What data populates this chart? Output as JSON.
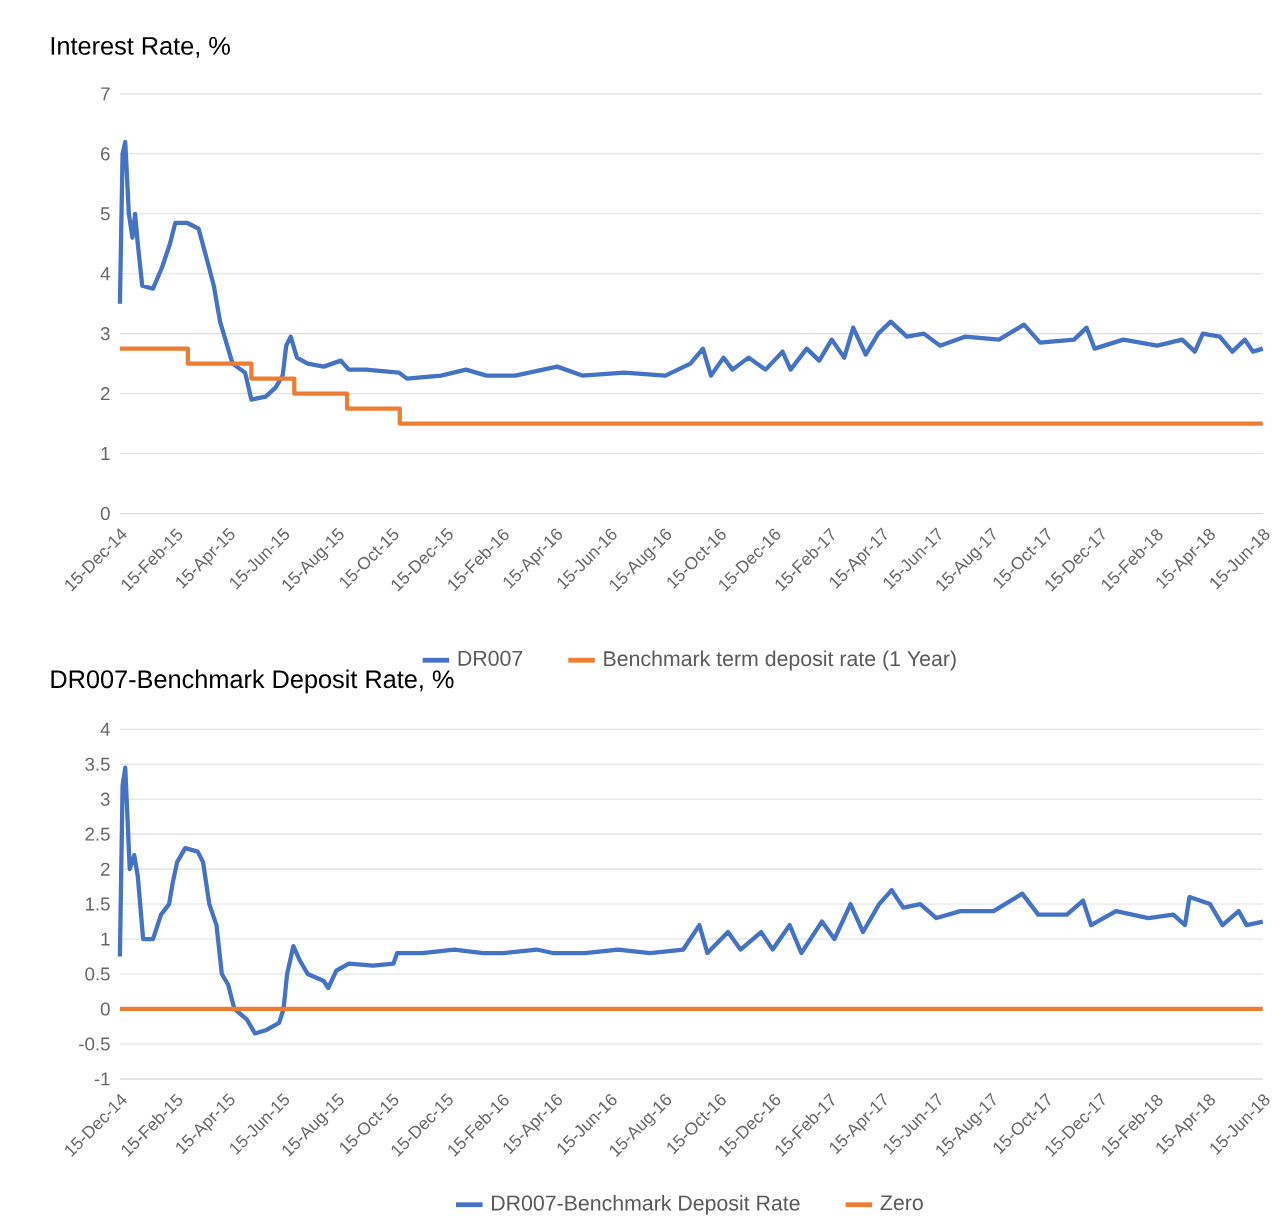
{
  "chart_data": [
    {
      "type": "line",
      "title": "Interest Rate, %",
      "grid": "y",
      "legend": "bottom",
      "xlim": [
        "2014-12-15",
        "2018-06-15"
      ],
      "xticks": [
        {
          "value": "2014-12-15",
          "label": "15-Dec-14"
        },
        {
          "value": "2015-02-15",
          "label": "15-Feb-15"
        },
        {
          "value": "2015-04-15",
          "label": "15-Apr-15"
        },
        {
          "value": "2015-06-15",
          "label": "15-Jun-15"
        },
        {
          "value": "2015-08-15",
          "label": "15-Aug-15"
        },
        {
          "value": "2015-10-15",
          "label": "15-Oct-15"
        },
        {
          "value": "2015-12-15",
          "label": "15-Dec-15"
        },
        {
          "value": "2016-02-15",
          "label": "15-Feb-16"
        },
        {
          "value": "2016-04-15",
          "label": "15-Apr-16"
        },
        {
          "value": "2016-06-15",
          "label": "15-Jun-16"
        },
        {
          "value": "2016-08-15",
          "label": "15-Aug-16"
        },
        {
          "value": "2016-10-15",
          "label": "15-Oct-16"
        },
        {
          "value": "2016-12-15",
          "label": "15-Dec-16"
        },
        {
          "value": "2017-02-15",
          "label": "15-Feb-17"
        },
        {
          "value": "2017-04-15",
          "label": "15-Apr-17"
        },
        {
          "value": "2017-06-15",
          "label": "15-Jun-17"
        },
        {
          "value": "2017-08-15",
          "label": "15-Aug-17"
        },
        {
          "value": "2017-10-15",
          "label": "15-Oct-17"
        },
        {
          "value": "2017-12-15",
          "label": "15-Dec-17"
        },
        {
          "value": "2018-02-15",
          "label": "15-Feb-18"
        },
        {
          "value": "2018-04-15",
          "label": "15-Apr-18"
        },
        {
          "value": "2018-06-15",
          "label": "15-Jun-18"
        }
      ],
      "ylim": [
        0,
        7
      ],
      "yticks": [
        0,
        1,
        2,
        3,
        4,
        5,
        6,
        7
      ],
      "series": [
        {
          "name": "DR007",
          "color": "#4472c4",
          "x": [
            "2014-12-15",
            "2014-12-18",
            "2014-12-21",
            "2014-12-25",
            "2014-12-29",
            "2015-01-01",
            "2015-01-04",
            "2015-01-09",
            "2015-01-21",
            "2015-01-31",
            "2015-02-09",
            "2015-02-15",
            "2015-02-28",
            "2015-03-13",
            "2015-03-23",
            "2015-03-30",
            "2015-04-06",
            "2015-04-12",
            "2015-04-20",
            "2015-05-04",
            "2015-05-11",
            "2015-05-27",
            "2015-06-07",
            "2015-06-15",
            "2015-06-19",
            "2015-06-24",
            "2015-07-01",
            "2015-07-13",
            "2015-07-31",
            "2015-08-19",
            "2015-08-28",
            "2015-09-16",
            "2015-10-23",
            "2015-11-01",
            "2015-12-09",
            "2016-01-06",
            "2016-01-29",
            "2016-03-01",
            "2016-04-17",
            "2016-05-15",
            "2016-07-01",
            "2016-08-16",
            "2016-09-13",
            "2016-09-27",
            "2016-10-06",
            "2016-10-20",
            "2016-10-30",
            "2016-11-17",
            "2016-12-06",
            "2016-12-25",
            "2017-01-03",
            "2017-01-21",
            "2017-02-04",
            "2017-02-18",
            "2017-03-04",
            "2017-03-14",
            "2017-03-28",
            "2017-04-11",
            "2017-04-25",
            "2017-05-13",
            "2017-06-01",
            "2017-06-19",
            "2017-07-17",
            "2017-08-24",
            "2017-09-21",
            "2017-10-09",
            "2017-11-16",
            "2017-11-30",
            "2017-12-09",
            "2018-01-10",
            "2018-02-17",
            "2018-03-17",
            "2018-03-31",
            "2018-04-09",
            "2018-04-28",
            "2018-05-12",
            "2018-05-26",
            "2018-06-04",
            "2018-06-15"
          ],
          "values": [
            3.5,
            6.0,
            6.2,
            5.0,
            4.6,
            5.0,
            4.5,
            3.8,
            3.75,
            4.1,
            4.5,
            4.85,
            4.85,
            4.75,
            4.2,
            3.8,
            3.2,
            2.9,
            2.5,
            2.35,
            1.9,
            1.95,
            2.1,
            2.3,
            2.8,
            2.95,
            2.6,
            2.5,
            2.45,
            2.55,
            2.4,
            2.4,
            2.35,
            2.25,
            2.3,
            2.4,
            2.3,
            2.3,
            2.45,
            2.3,
            2.35,
            2.3,
            2.5,
            2.75,
            2.3,
            2.6,
            2.4,
            2.6,
            2.4,
            2.7,
            2.4,
            2.75,
            2.55,
            2.9,
            2.6,
            3.1,
            2.65,
            3.0,
            3.2,
            2.95,
            3.0,
            2.8,
            2.95,
            2.9,
            3.15,
            2.85,
            2.9,
            3.1,
            2.75,
            2.9,
            2.8,
            2.9,
            2.7,
            3.0,
            2.95,
            2.7,
            2.9,
            2.7,
            2.75
          ]
        },
        {
          "name": "Benchmark term deposit rate (1 Year)",
          "type": "step",
          "color": "#ed7d31",
          "x": [
            "2014-12-15",
            "2015-03-01",
            "2015-05-11",
            "2015-06-28",
            "2015-08-26",
            "2015-10-24",
            "2018-06-15"
          ],
          "values": [
            2.75,
            2.5,
            2.25,
            2.0,
            1.75,
            1.5,
            1.5
          ]
        }
      ]
    },
    {
      "type": "line",
      "title": "DR007-Benchmark Deposit Rate, %",
      "grid": "y",
      "legend": "bottom",
      "xlim": [
        "2014-12-15",
        "2018-06-15"
      ],
      "xticks": [
        {
          "value": "2014-12-15",
          "label": "15-Dec-14"
        },
        {
          "value": "2015-02-15",
          "label": "15-Feb-15"
        },
        {
          "value": "2015-04-15",
          "label": "15-Apr-15"
        },
        {
          "value": "2015-06-15",
          "label": "15-Jun-15"
        },
        {
          "value": "2015-08-15",
          "label": "15-Aug-15"
        },
        {
          "value": "2015-10-15",
          "label": "15-Oct-15"
        },
        {
          "value": "2015-12-15",
          "label": "15-Dec-15"
        },
        {
          "value": "2016-02-15",
          "label": "15-Feb-16"
        },
        {
          "value": "2016-04-15",
          "label": "15-Apr-16"
        },
        {
          "value": "2016-06-15",
          "label": "15-Jun-16"
        },
        {
          "value": "2016-08-15",
          "label": "15-Aug-16"
        },
        {
          "value": "2016-10-15",
          "label": "15-Oct-16"
        },
        {
          "value": "2016-12-15",
          "label": "15-Dec-16"
        },
        {
          "value": "2017-02-15",
          "label": "15-Feb-17"
        },
        {
          "value": "2017-04-15",
          "label": "15-Apr-17"
        },
        {
          "value": "2017-06-15",
          "label": "15-Jun-17"
        },
        {
          "value": "2017-08-15",
          "label": "15-Aug-17"
        },
        {
          "value": "2017-10-15",
          "label": "15-Oct-17"
        },
        {
          "value": "2017-12-15",
          "label": "15-Dec-17"
        },
        {
          "value": "2018-02-15",
          "label": "15-Feb-18"
        },
        {
          "value": "2018-04-15",
          "label": "15-Apr-18"
        },
        {
          "value": "2018-06-15",
          "label": "15-Jun-18"
        }
      ],
      "ylim": [
        -1,
        4
      ],
      "yticks": [
        -1,
        -0.5,
        0,
        0.5,
        1,
        1.5,
        2,
        2.5,
        3,
        3.5,
        4
      ],
      "series": [
        {
          "name": "DR007-Benchmark Deposit Rate",
          "color": "#4472c4",
          "x": [
            "2014-12-15",
            "2014-12-18",
            "2014-12-21",
            "2014-12-26",
            "2014-12-31",
            "2015-01-04",
            "2015-01-10",
            "2015-01-21",
            "2015-01-30",
            "2015-02-08",
            "2015-02-12",
            "2015-02-17",
            "2015-02-26",
            "2015-03-12",
            "2015-03-18",
            "2015-03-25",
            "2015-04-02",
            "2015-04-08",
            "2015-04-15",
            "2015-04-22",
            "2015-05-06",
            "2015-05-15",
            "2015-05-28",
            "2015-06-11",
            "2015-06-16",
            "2015-06-20",
            "2015-06-27",
            "2015-07-04",
            "2015-07-13",
            "2015-07-31",
            "2015-08-05",
            "2015-08-14",
            "2015-08-28",
            "2015-09-24",
            "2015-10-17",
            "2015-10-21",
            "2015-11-18",
            "2015-12-24",
            "2016-01-25",
            "2016-02-17",
            "2016-03-25",
            "2016-04-12",
            "2016-05-18",
            "2016-06-24",
            "2016-07-30",
            "2016-09-05",
            "2016-09-23",
            "2016-10-02",
            "2016-10-25",
            "2016-11-08",
            "2016-12-01",
            "2016-12-14",
            "2017-01-02",
            "2017-01-15",
            "2017-02-07",
            "2017-02-21",
            "2017-03-11",
            "2017-03-25",
            "2017-04-12",
            "2017-04-26",
            "2017-05-09",
            "2017-05-28",
            "2017-06-15",
            "2017-07-12",
            "2017-08-18",
            "2017-09-19",
            "2017-10-07",
            "2017-11-08",
            "2017-11-26",
            "2017-12-05",
            "2018-01-02",
            "2018-02-07",
            "2018-03-07",
            "2018-03-20",
            "2018-03-25",
            "2018-04-17",
            "2018-05-01",
            "2018-05-19",
            "2018-05-28",
            "2018-06-15"
          ],
          "values": [
            0.75,
            3.2,
            3.45,
            2.0,
            2.2,
            1.9,
            1.0,
            1.0,
            1.35,
            1.5,
            1.8,
            2.1,
            2.3,
            2.25,
            2.1,
            1.5,
            1.2,
            0.5,
            0.35,
            0,
            -0.15,
            -0.35,
            -0.3,
            -0.2,
            0,
            0.5,
            0.9,
            0.7,
            0.5,
            0.4,
            0.3,
            0.55,
            0.65,
            0.62,
            0.65,
            0.8,
            0.8,
            0.85,
            0.8,
            0.8,
            0.85,
            0.8,
            0.8,
            0.85,
            0.8,
            0.85,
            1.2,
            0.8,
            1.1,
            0.85,
            1.1,
            0.85,
            1.2,
            0.8,
            1.25,
            1.0,
            1.5,
            1.1,
            1.5,
            1.7,
            1.45,
            1.5,
            1.3,
            1.4,
            1.4,
            1.65,
            1.35,
            1.35,
            1.55,
            1.2,
            1.4,
            1.3,
            1.35,
            1.2,
            1.6,
            1.5,
            1.2,
            1.4,
            1.2,
            1.25
          ]
        },
        {
          "name": "Zero",
          "color": "#ed7d31",
          "x": [
            "2014-12-15",
            "2018-06-15"
          ],
          "values": [
            0,
            0
          ]
        }
      ]
    }
  ]
}
